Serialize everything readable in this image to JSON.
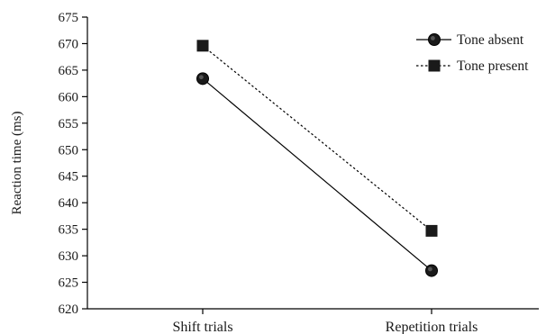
{
  "chart_data": {
    "type": "line",
    "categories": [
      "Shift trials",
      "Repetition trials"
    ],
    "ylabel": "Reaction time (ms)",
    "ylim": [
      620,
      675
    ],
    "yticks": [
      "620",
      "625",
      "630",
      "635",
      "640",
      "645",
      "650",
      "655",
      "660",
      "665",
      "670",
      "675"
    ],
    "grid": false,
    "legend_position": "top-right",
    "series": [
      {
        "name": "Tone absent",
        "marker": "circle",
        "line_style": "solid",
        "values": [
          663.4,
          627.2
        ]
      },
      {
        "name": "Tone present",
        "marker": "square",
        "line_style": "dotted",
        "values": [
          669.6,
          634.7
        ]
      }
    ]
  }
}
